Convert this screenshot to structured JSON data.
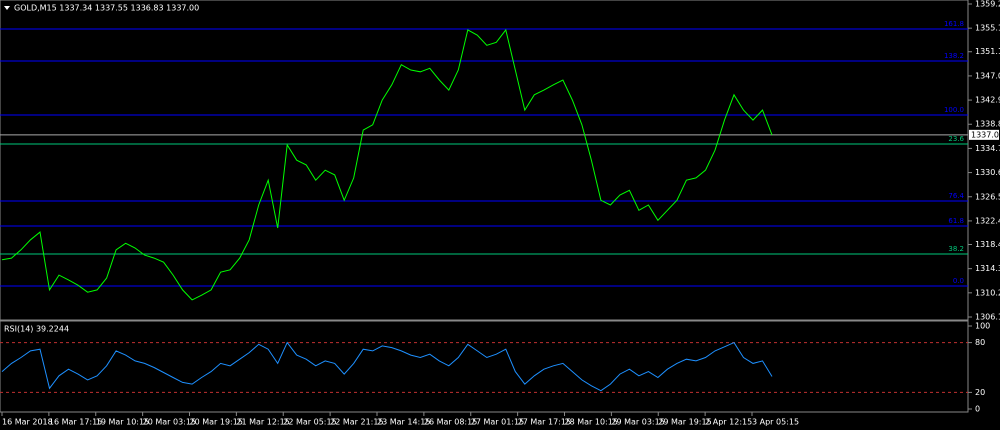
{
  "chart_data": [
    {
      "type": "line",
      "title": "GOLD,M15  1337.34 1337.55 1336.83 1337.00",
      "ylim": [
        1306.1,
        1359.2
      ],
      "yticks": [
        {
          "value": 1306.1,
          "label": "1306.10"
        },
        {
          "value": 1310.2,
          "label": "1310.20"
        },
        {
          "value": 1314.3,
          "label": "1314.30"
        },
        {
          "value": 1318.4,
          "label": "1318.40"
        },
        {
          "value": 1322.4,
          "label": "1322.40"
        },
        {
          "value": 1326.5,
          "label": "1326.50"
        },
        {
          "value": 1330.6,
          "label": "1330.60"
        },
        {
          "value": 1334.7,
          "label": "1334.70"
        },
        {
          "value": 1338.8,
          "label": "1338.80"
        },
        {
          "value": 1342.9,
          "label": "1342.90"
        },
        {
          "value": 1347,
          "label": "1347.00"
        },
        {
          "value": 1351.1,
          "label": "1351.10"
        },
        {
          "value": 1355.1,
          "label": "1355.10"
        },
        {
          "value": 1359.2,
          "label": "1359.20"
        }
      ],
      "current": {
        "value": 1337,
        "label": "1337.00"
      },
      "levels": [
        {
          "value": 1354.96,
          "label": "161.8",
          "color": "#0000ff"
        },
        {
          "value": 1349.53,
          "label": "138.2",
          "color": "#0000ff"
        },
        {
          "value": 1340.37,
          "label": "100.0",
          "color": "#0000ff"
        },
        {
          "value": 1335.45,
          "label": "23.6",
          "color": "#00c87a"
        },
        {
          "value": 1325.78,
          "label": "76.4",
          "color": "#0000ff"
        },
        {
          "value": 1321.53,
          "label": "61.8",
          "color": "#0000ff"
        },
        {
          "value": 1316.78,
          "label": "38.2",
          "color": "#00c87a"
        },
        {
          "value": 1311.35,
          "label": "0.0",
          "color": "#0000ff"
        }
      ],
      "series": [
        {
          "name": "GOLD",
          "color": "#00ff00",
          "values": [
            1315.8,
            1316.1,
            1317.5,
            1319.2,
            1320.5,
            1310.7,
            1313.2,
            1312.4,
            1311.5,
            1310.3,
            1310.7,
            1312.7,
            1317.5,
            1318.6,
            1317.8,
            1316.6,
            1316.1,
            1315.4,
            1313.2,
            1310.7,
            1309.0,
            1309.8,
            1310.7,
            1313.7,
            1314.1,
            1316.1,
            1319.2,
            1325.1,
            1329.3,
            1321.2,
            1335.3,
            1332.7,
            1331.9,
            1329.3,
            1331.0,
            1330.2,
            1325.9,
            1329.7,
            1337.8,
            1338.7,
            1342.9,
            1345.5,
            1348.9,
            1348.0,
            1347.7,
            1348.3,
            1346.3,
            1344.6,
            1348.0,
            1354.8,
            1353.9,
            1352.2,
            1352.7,
            1354.8,
            1348.0,
            1341.2,
            1343.8,
            1344.6,
            1345.5,
            1346.3,
            1342.9,
            1338.7,
            1332.7,
            1325.9,
            1325.1,
            1326.8,
            1327.6,
            1324.2,
            1325.1,
            1322.5,
            1324.2,
            1325.9,
            1329.3,
            1329.7,
            1331.0,
            1334.4,
            1339.5,
            1343.8,
            1341.2,
            1339.5,
            1341.2,
            1337.0
          ]
        }
      ]
    },
    {
      "type": "line",
      "title": "RSI(14) 39.2244",
      "ylim": [
        0,
        100
      ],
      "yticks": [
        0,
        20,
        80,
        100
      ],
      "levels": [
        80,
        20
      ],
      "xtick_labels": [
        "16 Mar 2018",
        "16 Mar 17:15",
        "19 Mar 10:15",
        "20 Mar 03:15",
        "20 Mar 19:15",
        "21 Mar 12:15",
        "22 Mar 05:15",
        "22 Mar 21:15",
        "23 Mar 14:15",
        "26 Mar 08:15",
        "27 Mar 01:15",
        "27 Mar 17:15",
        "28 Mar 10:15",
        "29 Mar 03:15",
        "29 Mar 19:15",
        "2 Apr 12:15",
        "3 Apr 05:15"
      ],
      "series": [
        {
          "name": "RSI(14)",
          "color": "#1e90ff",
          "values": [
            45,
            55,
            62,
            70,
            72,
            25,
            40,
            48,
            42,
            35,
            40,
            52,
            70,
            65,
            58,
            55,
            50,
            44,
            38,
            32,
            30,
            38,
            45,
            55,
            52,
            60,
            68,
            78,
            72,
            55,
            80,
            65,
            60,
            52,
            58,
            55,
            42,
            55,
            72,
            70,
            76,
            74,
            70,
            65,
            62,
            66,
            58,
            52,
            62,
            78,
            70,
            62,
            66,
            72,
            45,
            30,
            40,
            48,
            52,
            55,
            45,
            35,
            28,
            22,
            30,
            42,
            48,
            40,
            45,
            38,
            48,
            55,
            60,
            58,
            62,
            70,
            75,
            80,
            62,
            55,
            58,
            39.2
          ]
        }
      ]
    }
  ]
}
